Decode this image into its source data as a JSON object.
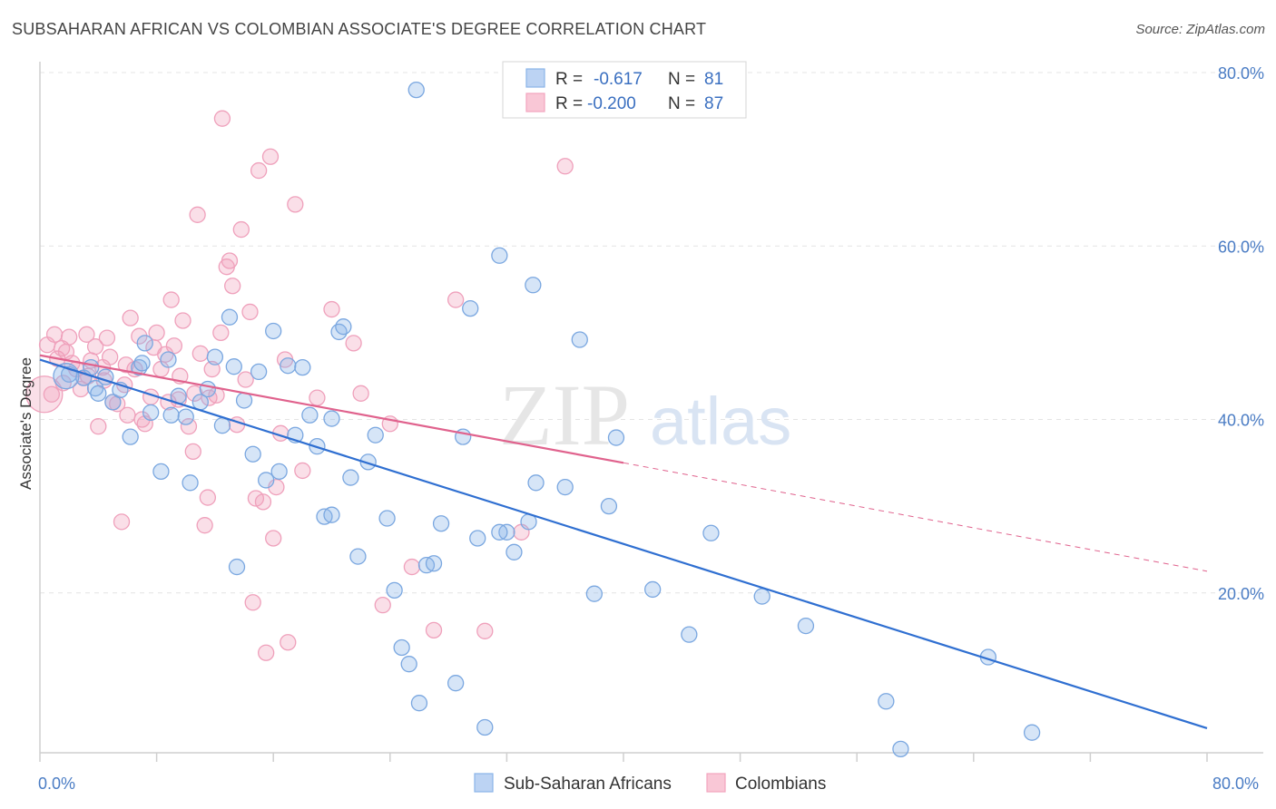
{
  "header": {
    "title": "SUBSAHARAN AFRICAN VS COLOMBIAN ASSOCIATE'S DEGREE CORRELATION CHART",
    "source": "Source: ZipAtlas.com"
  },
  "watermark": {
    "zip": "ZIP",
    "atlas": "atlas"
  },
  "legend": {
    "rows": [
      {
        "r_label": "R =",
        "r_value": "-0.617",
        "n_label": "N =",
        "n_value": "81"
      },
      {
        "r_label": "R =",
        "r_value": "-0.200",
        "n_label": "N =",
        "n_value": "87"
      }
    ]
  },
  "bottom_legend": {
    "items": [
      {
        "label": "Sub-Saharan Africans"
      },
      {
        "label": "Colombians"
      }
    ]
  },
  "chart_data": {
    "type": "scatter",
    "title": "SUBSAHARAN AFRICAN VS COLOMBIAN ASSOCIATE'S DEGREE CORRELATION CHART",
    "xlabel": "",
    "ylabel": "Associate's Degree",
    "xlim": [
      0,
      80
    ],
    "ylim": [
      0,
      80
    ],
    "x_tick_labels": [
      "0.0%",
      "80.0%"
    ],
    "y_ticks": [
      20,
      40,
      60,
      80
    ],
    "y_tick_labels": [
      "20.0%",
      "40.0%",
      "60.0%",
      "80.0%"
    ],
    "grid": true,
    "legend_position": "top-center",
    "colors": {
      "blue": "#8ab4e8",
      "blue_line": "#2f6fd1",
      "pink": "#f2a3bd",
      "pink_line": "#e0628d"
    },
    "series": [
      {
        "name": "Sub-Saharan Africans",
        "color": "blue",
        "r": -0.617,
        "n": 81,
        "trend": {
          "x": [
            0,
            80
          ],
          "y": [
            46.9,
            4.4
          ]
        },
        "points": [
          [
            2.0,
            45.2
          ],
          [
            3.0,
            44.8
          ],
          [
            3.8,
            43.6
          ],
          [
            4.5,
            44.9
          ],
          [
            5.0,
            42.0
          ],
          [
            5.5,
            43.4
          ],
          [
            6.2,
            38.0
          ],
          [
            6.8,
            46.0
          ],
          [
            7.2,
            48.8
          ],
          [
            7.6,
            40.8
          ],
          [
            8.3,
            34.0
          ],
          [
            8.8,
            46.9
          ],
          [
            9.5,
            42.7
          ],
          [
            10.0,
            40.3
          ],
          [
            10.3,
            32.7
          ],
          [
            11.0,
            42.0
          ],
          [
            11.5,
            43.5
          ],
          [
            12.0,
            47.2
          ],
          [
            12.5,
            39.3
          ],
          [
            13.0,
            51.8
          ],
          [
            13.3,
            46.1
          ],
          [
            14.0,
            42.2
          ],
          [
            14.6,
            36.0
          ],
          [
            15.0,
            45.5
          ],
          [
            15.5,
            33.0
          ],
          [
            16.0,
            50.2
          ],
          [
            16.4,
            34.0
          ],
          [
            17.0,
            46.2
          ],
          [
            17.5,
            38.2
          ],
          [
            18.0,
            46.0
          ],
          [
            18.5,
            40.5
          ],
          [
            19.0,
            36.9
          ],
          [
            19.5,
            28.8
          ],
          [
            20.0,
            40.1
          ],
          [
            20.5,
            50.1
          ],
          [
            20.8,
            50.7
          ],
          [
            21.3,
            33.3
          ],
          [
            21.8,
            24.2
          ],
          [
            22.5,
            35.1
          ],
          [
            23.0,
            38.2
          ],
          [
            23.8,
            28.6
          ],
          [
            24.3,
            20.3
          ],
          [
            24.8,
            13.7
          ],
          [
            25.3,
            11.8
          ],
          [
            26.0,
            7.3
          ],
          [
            26.5,
            23.2
          ],
          [
            27.5,
            28.0
          ],
          [
            28.5,
            9.6
          ],
          [
            29.0,
            38.0
          ],
          [
            29.5,
            52.8
          ],
          [
            30.0,
            26.3
          ],
          [
            30.5,
            4.5
          ],
          [
            31.5,
            58.9
          ],
          [
            32.0,
            27.0
          ],
          [
            32.5,
            24.7
          ],
          [
            33.5,
            28.2
          ],
          [
            33.8,
            55.5
          ],
          [
            34.0,
            32.7
          ],
          [
            36.0,
            32.2
          ],
          [
            37.0,
            49.2
          ],
          [
            38.0,
            19.9
          ],
          [
            39.0,
            30.0
          ],
          [
            39.5,
            37.9
          ],
          [
            42.0,
            20.4
          ],
          [
            44.5,
            15.2
          ],
          [
            46.0,
            26.9
          ],
          [
            49.5,
            19.6
          ],
          [
            52.5,
            16.2
          ],
          [
            58.0,
            7.5
          ],
          [
            59.0,
            2.0
          ],
          [
            65.0,
            12.6
          ],
          [
            68.0,
            3.9
          ],
          [
            25.8,
            78.0
          ],
          [
            27.0,
            23.4
          ],
          [
            20.0,
            29.0
          ],
          [
            13.5,
            23.0
          ],
          [
            31.5,
            27.0
          ],
          [
            9.0,
            40.5
          ],
          [
            4.0,
            43.0
          ],
          [
            7.0,
            46.5
          ],
          [
            3.5,
            46.0
          ]
        ]
      },
      {
        "name": "Colombians",
        "color": "pink",
        "r": -0.2,
        "n": 87,
        "trend": {
          "x": [
            0,
            40,
            80
          ],
          "y": [
            47.4,
            35.0,
            22.5
          ]
        },
        "points": [
          [
            0.5,
            48.6
          ],
          [
            1.0,
            49.8
          ],
          [
            1.5,
            48.2
          ],
          [
            1.8,
            47.8
          ],
          [
            2.2,
            46.5
          ],
          [
            2.5,
            45.8
          ],
          [
            3.0,
            44.8
          ],
          [
            3.2,
            49.8
          ],
          [
            3.8,
            48.4
          ],
          [
            4.0,
            39.2
          ],
          [
            4.3,
            46.0
          ],
          [
            4.6,
            49.4
          ],
          [
            5.0,
            42.0
          ],
          [
            5.3,
            41.8
          ],
          [
            5.6,
            28.2
          ],
          [
            5.9,
            46.3
          ],
          [
            6.2,
            51.7
          ],
          [
            6.5,
            45.8
          ],
          [
            7.0,
            40.0
          ],
          [
            7.2,
            39.5
          ],
          [
            7.6,
            42.6
          ],
          [
            8.0,
            50.0
          ],
          [
            8.3,
            45.8
          ],
          [
            8.6,
            47.5
          ],
          [
            9.0,
            53.8
          ],
          [
            9.2,
            48.5
          ],
          [
            9.5,
            42.3
          ],
          [
            9.8,
            51.4
          ],
          [
            10.2,
            39.2
          ],
          [
            10.5,
            36.3
          ],
          [
            10.8,
            63.6
          ],
          [
            11.0,
            47.6
          ],
          [
            11.3,
            27.8
          ],
          [
            11.5,
            31.0
          ],
          [
            11.8,
            45.8
          ],
          [
            12.1,
            42.8
          ],
          [
            12.5,
            74.7
          ],
          [
            12.8,
            57.6
          ],
          [
            13.0,
            58.3
          ],
          [
            13.2,
            55.4
          ],
          [
            13.5,
            39.4
          ],
          [
            13.8,
            61.9
          ],
          [
            14.1,
            44.6
          ],
          [
            14.4,
            52.4
          ],
          [
            14.6,
            18.9
          ],
          [
            14.8,
            30.9
          ],
          [
            15.0,
            68.7
          ],
          [
            15.3,
            30.5
          ],
          [
            15.5,
            13.1
          ],
          [
            15.8,
            70.3
          ],
          [
            16.0,
            26.3
          ],
          [
            16.2,
            32.2
          ],
          [
            16.5,
            38.4
          ],
          [
            16.8,
            46.9
          ],
          [
            17.0,
            14.3
          ],
          [
            17.5,
            64.8
          ],
          [
            18.0,
            34.1
          ],
          [
            19.0,
            42.5
          ],
          [
            20.0,
            52.7
          ],
          [
            21.5,
            48.8
          ],
          [
            22.0,
            43.0
          ],
          [
            23.5,
            18.6
          ],
          [
            24.0,
            39.5
          ],
          [
            25.5,
            23.0
          ],
          [
            27.0,
            15.7
          ],
          [
            28.5,
            53.8
          ],
          [
            30.5,
            15.6
          ],
          [
            33.0,
            27.0
          ],
          [
            36.0,
            69.2
          ],
          [
            1.2,
            47.0
          ],
          [
            2.8,
            43.5
          ],
          [
            3.5,
            46.8
          ],
          [
            4.8,
            47.2
          ],
          [
            5.8,
            44.0
          ],
          [
            6.8,
            49.6
          ],
          [
            7.8,
            48.3
          ],
          [
            8.8,
            42.0
          ],
          [
            9.6,
            45.0
          ],
          [
            10.6,
            43.0
          ],
          [
            11.6,
            42.5
          ],
          [
            12.4,
            50.0
          ],
          [
            6.0,
            40.5
          ],
          [
            2.0,
            49.5
          ],
          [
            0.8,
            42.9
          ],
          [
            1.6,
            44.2
          ],
          [
            3.3,
            45.0
          ],
          [
            4.4,
            44.5
          ]
        ]
      }
    ]
  }
}
